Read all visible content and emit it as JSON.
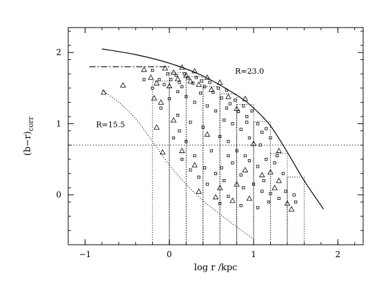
{
  "chart_data": {
    "type": "scatter",
    "title": "",
    "xlabel": "log r  /kpc",
    "ylabel_main": "(b−r)",
    "ylabel_sub": "corr",
    "xlim": [
      -1.2,
      2.3
    ],
    "ylim": [
      -0.7,
      2.35
    ],
    "grid": false,
    "x_ticks": [
      -1,
      0,
      1,
      2
    ],
    "y_ticks": [
      0,
      1,
      2
    ],
    "x_tick_labels": [
      "−1",
      "0",
      "1",
      "2"
    ],
    "y_tick_labels": [
      "0",
      "1",
      "2"
    ],
    "annotations": [
      {
        "text": "R=23.0",
        "x": 0.78,
        "y": 1.7
      },
      {
        "text": "R=15.5",
        "x": -0.87,
        "y": 0.95
      }
    ],
    "reference_lines": {
      "horizontal_dotted_y": 0.7,
      "dashdot_y": 1.8,
      "dashdot_x_range": [
        -0.95,
        0.02
      ]
    },
    "curve_faint_limit": [
      [
        -0.8,
        2.05
      ],
      [
        -0.4,
        1.97
      ],
      [
        0.0,
        1.85
      ],
      [
        0.4,
        1.67
      ],
      [
        0.8,
        1.4
      ],
      [
        1.0,
        1.22
      ],
      [
        1.2,
        0.97
      ],
      [
        1.4,
        0.6
      ],
      [
        1.6,
        0.2
      ],
      [
        1.83,
        -0.2
      ]
    ],
    "curve_bright_limit": [
      [
        -0.8,
        1.47
      ],
      [
        -0.6,
        1.3
      ],
      [
        -0.4,
        1.07
      ],
      [
        -0.2,
        0.75
      ],
      [
        0.0,
        0.42
      ],
      [
        0.2,
        0.15
      ],
      [
        0.4,
        -0.08
      ],
      [
        0.6,
        -0.27
      ],
      [
        0.8,
        -0.45
      ],
      [
        1.0,
        -0.62
      ]
    ],
    "bins": [
      {
        "x0": -0.2,
        "x1": 0.0,
        "y": 1.6
      },
      {
        "x0": 0.0,
        "x1": 0.2,
        "y": 1.72
      },
      {
        "x0": 0.2,
        "x1": 0.4,
        "y": 1.66
      },
      {
        "x0": 0.4,
        "x1": 0.6,
        "y": 1.52
      },
      {
        "x0": 0.6,
        "x1": 0.8,
        "y": 1.42
      },
      {
        "x0": 0.8,
        "x1": 1.0,
        "y": 1.27
      },
      {
        "x0": 1.0,
        "x1": 1.2,
        "y": 1.03
      },
      {
        "x0": 1.2,
        "x1": 1.4,
        "y": 0.58
      },
      {
        "x0": 1.4,
        "x1": 1.6,
        "y": 0.25
      }
    ],
    "triangles": [
      [
        -0.78,
        1.44
      ],
      [
        -0.55,
        1.54
      ],
      [
        -0.3,
        1.76
      ],
      [
        -0.22,
        1.65
      ],
      [
        -0.18,
        1.36
      ],
      [
        -0.15,
        1.57
      ],
      [
        -0.1,
        1.3
      ],
      [
        -0.05,
        1.78
      ],
      [
        0.0,
        1.53
      ],
      [
        0.05,
        1.72
      ],
      [
        0.1,
        1.63
      ],
      [
        0.15,
        1.79
      ],
      [
        0.2,
        1.68
      ],
      [
        0.25,
        1.6
      ],
      [
        0.3,
        1.74
      ],
      [
        0.35,
        1.55
      ],
      [
        0.45,
        1.65
      ],
      [
        0.5,
        1.48
      ],
      [
        0.6,
        1.58
      ],
      [
        0.7,
        1.38
      ],
      [
        0.8,
        1.21
      ],
      [
        0.9,
        1.35
      ],
      [
        -0.15,
        0.95
      ],
      [
        -0.08,
        0.6
      ],
      [
        0.05,
        1.05
      ],
      [
        0.15,
        0.62
      ],
      [
        0.3,
        0.42
      ],
      [
        0.45,
        0.85
      ],
      [
        0.6,
        0.1
      ],
      [
        0.8,
        0.15
      ],
      [
        0.9,
        0.35
      ],
      [
        1.1,
        0.28
      ],
      [
        1.2,
        0.32
      ],
      [
        1.25,
        0.1
      ],
      [
        1.3,
        0.2
      ],
      [
        1.4,
        -0.12
      ],
      [
        1.45,
        -0.2
      ],
      [
        1.3,
        0.62
      ],
      [
        0.95,
        -0.05
      ],
      [
        0.75,
        -0.08
      ],
      [
        0.55,
        -0.03
      ],
      [
        0.35,
        0.05
      ],
      [
        1.0,
        0.72
      ]
    ],
    "squares": [
      [
        -0.2,
        1.5
      ],
      [
        -0.12,
        1.62
      ],
      [
        -0.06,
        1.55
      ],
      [
        -0.02,
        1.7
      ],
      [
        0.02,
        1.62
      ],
      [
        0.08,
        1.68
      ],
      [
        0.12,
        1.58
      ],
      [
        0.18,
        1.7
      ],
      [
        0.22,
        1.64
      ],
      [
        0.28,
        1.57
      ],
      [
        0.32,
        1.65
      ],
      [
        0.38,
        1.6
      ],
      [
        0.42,
        1.52
      ],
      [
        0.48,
        1.58
      ],
      [
        0.52,
        1.44
      ],
      [
        0.58,
        1.5
      ],
      [
        0.62,
        1.36
      ],
      [
        0.68,
        1.47
      ],
      [
        0.72,
        1.28
      ],
      [
        0.78,
        1.33
      ],
      [
        0.82,
        1.17
      ],
      [
        0.88,
        1.25
      ],
      [
        0.92,
        1.1
      ],
      [
        0.98,
        1.18
      ],
      [
        1.05,
        1.0
      ],
      [
        1.1,
        0.88
      ],
      [
        1.15,
        0.93
      ],
      [
        1.2,
        0.8
      ],
      [
        0.1,
        1.45
      ],
      [
        0.2,
        1.38
      ],
      [
        0.3,
        1.3
      ],
      [
        0.45,
        1.25
      ],
      [
        0.55,
        1.18
      ],
      [
        0.65,
        1.05
      ],
      [
        0.75,
        1.0
      ],
      [
        0.85,
        0.92
      ],
      [
        -0.1,
        1.22
      ],
      [
        0.0,
        1.35
      ],
      [
        0.1,
        1.12
      ],
      [
        0.25,
        1.02
      ],
      [
        0.4,
        0.95
      ],
      [
        0.6,
        0.82
      ],
      [
        0.7,
        0.75
      ],
      [
        0.8,
        0.62
      ],
      [
        0.9,
        0.55
      ],
      [
        0.95,
        0.48
      ],
      [
        1.05,
        0.4
      ],
      [
        1.15,
        0.5
      ],
      [
        1.25,
        0.45
      ],
      [
        1.35,
        0.3
      ],
      [
        0.05,
        0.8
      ],
      [
        0.15,
        0.5
      ],
      [
        0.25,
        0.35
      ],
      [
        0.35,
        0.25
      ],
      [
        0.45,
        0.15
      ],
      [
        0.55,
        0.3
      ],
      [
        0.65,
        0.2
      ],
      [
        0.75,
        0.45
      ],
      [
        0.85,
        0.28
      ],
      [
        1.0,
        0.15
      ],
      [
        1.1,
        0.05
      ],
      [
        1.2,
        0.02
      ],
      [
        1.3,
        -0.05
      ],
      [
        1.38,
        0.05
      ],
      [
        1.48,
        0.0
      ],
      [
        1.5,
        -0.1
      ],
      [
        0.6,
        -0.12
      ],
      [
        0.7,
        -0.02
      ],
      [
        0.85,
        -0.15
      ],
      [
        1.05,
        -0.18
      ],
      [
        0.2,
        0.75
      ],
      [
        0.5,
        0.62
      ],
      [
        0.3,
        0.55
      ],
      [
        0.7,
        0.55
      ],
      [
        0.95,
        0.8
      ],
      [
        1.08,
        0.7
      ],
      [
        -0.3,
        1.62
      ],
      [
        -0.2,
        1.75
      ],
      [
        0.15,
        1.52
      ],
      [
        0.37,
        1.43
      ],
      [
        0.68,
        1.22
      ],
      [
        0.92,
        1.02
      ],
      [
        0.12,
        0.9
      ],
      [
        0.42,
        0.38
      ],
      [
        0.62,
        0.38
      ],
      [
        0.88,
        0.1
      ],
      [
        1.12,
        0.2
      ],
      [
        1.28,
        0.55
      ],
      [
        1.18,
        -0.1
      ]
    ]
  }
}
